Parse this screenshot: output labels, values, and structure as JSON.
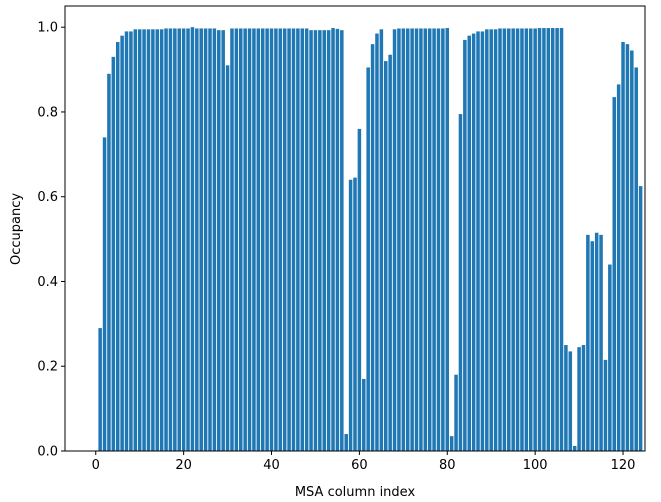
{
  "chart_data": {
    "type": "bar",
    "xlabel": "MSA column index",
    "ylabel": "Occupancy",
    "color": "#1f77b4",
    "bar_width": 0.8,
    "x": [
      1,
      2,
      3,
      4,
      5,
      6,
      7,
      8,
      9,
      10,
      11,
      12,
      13,
      14,
      15,
      16,
      17,
      18,
      19,
      20,
      21,
      22,
      23,
      24,
      25,
      26,
      27,
      28,
      29,
      30,
      31,
      32,
      33,
      34,
      35,
      36,
      37,
      38,
      39,
      40,
      41,
      42,
      43,
      44,
      45,
      46,
      47,
      48,
      49,
      50,
      51,
      52,
      53,
      54,
      55,
      56,
      57,
      58,
      59,
      60,
      61,
      62,
      63,
      64,
      65,
      66,
      67,
      68,
      69,
      70,
      71,
      72,
      73,
      74,
      75,
      76,
      77,
      78,
      79,
      80,
      81,
      82,
      83,
      84,
      85,
      86,
      87,
      88,
      89,
      90,
      91,
      92,
      93,
      94,
      95,
      96,
      97,
      98,
      99,
      100,
      101,
      102,
      103,
      104,
      105,
      106,
      107,
      108,
      109,
      110,
      111,
      112,
      113,
      114,
      115,
      116,
      117,
      118,
      119,
      120,
      121,
      122,
      123,
      124
    ],
    "values": [
      0.29,
      0.74,
      0.89,
      0.93,
      0.965,
      0.98,
      0.99,
      0.99,
      0.995,
      0.995,
      0.995,
      0.995,
      0.995,
      0.995,
      0.995,
      0.997,
      0.997,
      0.997,
      0.997,
      0.997,
      0.997,
      1.0,
      0.997,
      0.997,
      0.997,
      0.997,
      0.997,
      0.993,
      0.993,
      0.91,
      0.997,
      0.997,
      0.997,
      0.997,
      0.997,
      0.997,
      0.997,
      0.997,
      0.997,
      0.997,
      0.997,
      0.997,
      0.997,
      0.997,
      0.997,
      0.997,
      0.997,
      0.997,
      0.993,
      0.993,
      0.993,
      0.993,
      0.993,
      0.998,
      0.996,
      0.993,
      0.04,
      0.64,
      0.645,
      0.76,
      0.17,
      0.905,
      0.96,
      0.985,
      0.995,
      0.92,
      0.935,
      0.995,
      0.997,
      0.997,
      0.997,
      0.997,
      0.997,
      0.997,
      0.997,
      0.997,
      0.997,
      0.997,
      0.997,
      0.998,
      0.035,
      0.18,
      0.795,
      0.97,
      0.98,
      0.985,
      0.99,
      0.99,
      0.995,
      0.995,
      0.995,
      0.997,
      0.997,
      0.997,
      0.997,
      0.997,
      0.997,
      0.997,
      0.997,
      0.997,
      0.998,
      0.998,
      0.998,
      0.998,
      0.998,
      0.998,
      0.25,
      0.235,
      0.012,
      0.245,
      0.25,
      0.51,
      0.495,
      0.515,
      0.51,
      0.215,
      0.44,
      0.835,
      0.865,
      0.965,
      0.96,
      0.945,
      0.905,
      0.625
    ],
    "xlim": [
      -7,
      125
    ],
    "ylim": [
      0,
      1.05
    ],
    "xticks": [
      0,
      20,
      40,
      60,
      80,
      100,
      120
    ],
    "yticks": [
      {
        "value": 0,
        "label": "0.0"
      },
      0.2,
      0.4,
      0.6,
      0.8,
      {
        "value": 1,
        "label": "1.0"
      }
    ]
  }
}
